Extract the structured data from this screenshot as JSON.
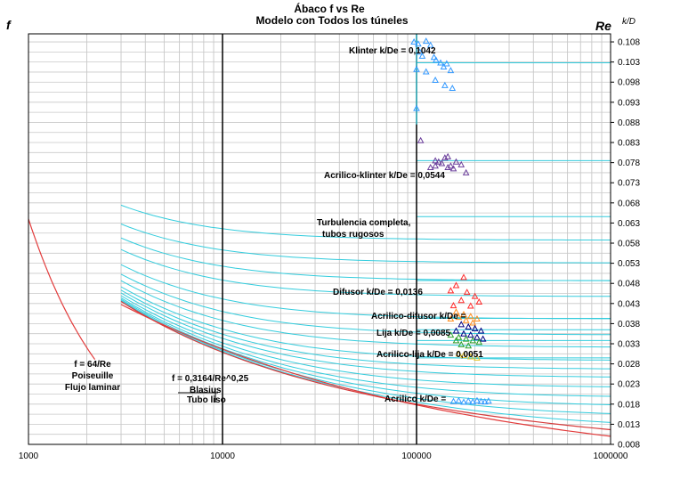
{
  "chart_data": {
    "type": "scatter",
    "title_line1": "Ábaco f vs Re",
    "title_line2": "Modelo con Todos los túneles",
    "ylabel_left": "f",
    "xlabel_top": "Re",
    "ylabel_right": "k/D",
    "x_scale": "log",
    "xlim": [
      1000,
      1000000
    ],
    "ylim": [
      0.008,
      0.11
    ],
    "x_ticks": [
      "1000",
      "10000",
      "100000",
      "1000000"
    ],
    "y_ticks": [
      "0.108",
      "0.103",
      "0.098",
      "0.093",
      "0.088",
      "0.083",
      "0.078",
      "0.073",
      "0.068",
      "0.063",
      "0.058",
      "0.053",
      "0.048",
      "0.043",
      "0.038",
      "0.033",
      "0.028",
      "0.023",
      "0.018",
      "0.013",
      "0.008"
    ],
    "grid": true,
    "annotations": {
      "klinter": "Klinter  k/De = 0,1042",
      "acrilico_klinter": "Acrilico-klinter k/De = 0,0544",
      "turbulencia_1": "Turbulencia completa,",
      "turbulencia_2": "tubos rugosos",
      "difusor": "Difusor  k/De = 0,0136",
      "acrilico_difusor": "Acrilico-difusor k/De =",
      "lija": "Lija  k/De = 0,0085",
      "acrilico_lija": "Acrilico-lija  k/De = 0,0051",
      "acrilico": "Acrilico  k/De =",
      "poiseuille_1": "f = 64/Re",
      "poiseuille_2": "Poiseuille",
      "poiseuille_3": "Flujo laminar",
      "blasius_1": "f = 0,3164/Re^0,25",
      "blasius_2": "Blasius",
      "blasius_3": "Tubo liso"
    },
    "series": [
      {
        "name": "Klinter",
        "color": "#3399ff",
        "points": [
          [
            97000,
            0.108
          ],
          [
            102000,
            0.1075
          ],
          [
            104000,
            0.1055
          ],
          [
            107000,
            0.1045
          ],
          [
            112000,
            0.1082
          ],
          [
            118000,
            0.1072
          ],
          [
            123000,
            0.1042
          ],
          [
            126000,
            0.1035
          ],
          [
            133000,
            0.1028
          ],
          [
            138000,
            0.1018
          ],
          [
            143000,
            0.1026
          ],
          [
            100000,
            0.1012
          ],
          [
            112000,
            0.1006
          ],
          [
            150000,
            0.1009
          ],
          [
            125000,
            0.0985
          ],
          [
            140000,
            0.0972
          ],
          [
            153000,
            0.0965
          ],
          [
            100000,
            0.0915
          ]
        ]
      },
      {
        "name": "Acrilico-klinter",
        "color": "#6a3d9a",
        "points": [
          [
            105000,
            0.0835
          ],
          [
            118000,
            0.0768
          ],
          [
            125000,
            0.0772
          ],
          [
            130000,
            0.0782
          ],
          [
            135000,
            0.0778
          ],
          [
            140000,
            0.0792
          ],
          [
            145000,
            0.0768
          ],
          [
            150000,
            0.0772
          ],
          [
            160000,
            0.0782
          ],
          [
            125000,
            0.0785
          ],
          [
            145000,
            0.0795
          ],
          [
            155000,
            0.0765
          ],
          [
            170000,
            0.0775
          ],
          [
            180000,
            0.0755
          ]
        ]
      },
      {
        "name": "Difusor",
        "color": "#ff2a2a",
        "points": [
          [
            175000,
            0.0495
          ],
          [
            160000,
            0.0475
          ],
          [
            150000,
            0.0462
          ],
          [
            182000,
            0.0458
          ],
          [
            200000,
            0.0448
          ],
          [
            170000,
            0.0438
          ],
          [
            210000,
            0.0434
          ],
          [
            190000,
            0.0424
          ],
          [
            155000,
            0.0425
          ]
        ]
      },
      {
        "name": "Acrilico-difusor",
        "color": "#ff8c1a",
        "points": [
          [
            160000,
            0.0409
          ],
          [
            175000,
            0.0403
          ],
          [
            190000,
            0.0398
          ],
          [
            205000,
            0.0392
          ],
          [
            165000,
            0.0396
          ],
          [
            180000,
            0.0388
          ],
          [
            195000,
            0.0382
          ],
          [
            150000,
            0.0392
          ]
        ]
      },
      {
        "name": "Lija",
        "color": "#000080",
        "points": [
          [
            170000,
            0.0378
          ],
          [
            185000,
            0.0372
          ],
          [
            200000,
            0.0368
          ],
          [
            215000,
            0.0362
          ],
          [
            175000,
            0.0355
          ],
          [
            190000,
            0.0352
          ],
          [
            205000,
            0.0346
          ],
          [
            220000,
            0.0342
          ],
          [
            160000,
            0.0362
          ]
        ]
      },
      {
        "name": "Acrilico-lija",
        "color": "#2ca02c",
        "points": [
          [
            150000,
            0.0352
          ],
          [
            165000,
            0.0346
          ],
          [
            180000,
            0.0342
          ],
          [
            195000,
            0.0338
          ],
          [
            210000,
            0.0334
          ],
          [
            170000,
            0.0328
          ],
          [
            185000,
            0.0325
          ],
          [
            160000,
            0.0338
          ]
        ]
      },
      {
        "name": "Acrilico-lija 2",
        "color": "#e6c229",
        "points": [
          [
            175000,
            0.0301
          ],
          [
            190000,
            0.0298
          ],
          [
            205000,
            0.0295
          ],
          [
            165000,
            0.0305
          ]
        ]
      },
      {
        "name": "Acrilico",
        "color": "#3399ff",
        "points": [
          [
            155000,
            0.0187
          ],
          [
            165000,
            0.0189
          ],
          [
            175000,
            0.0185
          ],
          [
            185000,
            0.0188
          ],
          [
            195000,
            0.0186
          ],
          [
            205000,
            0.0189
          ],
          [
            215000,
            0.0187
          ],
          [
            225000,
            0.0186
          ],
          [
            235000,
            0.0188
          ]
        ]
      }
    ]
  }
}
